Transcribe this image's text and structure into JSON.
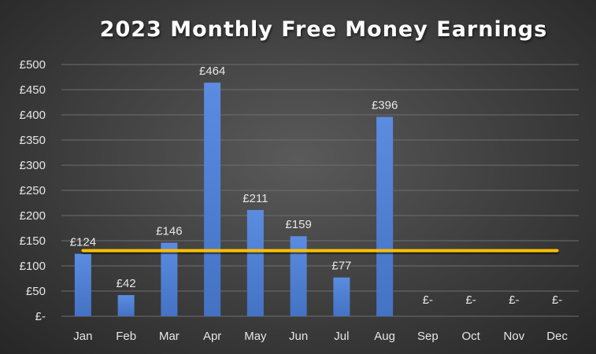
{
  "chart_data": {
    "type": "bar",
    "title": "2023 Monthly Free Money Earnings",
    "categories": [
      "Jan",
      "Feb",
      "Mar",
      "Apr",
      "May",
      "Jun",
      "Jul",
      "Aug",
      "Sep",
      "Oct",
      "Nov",
      "Dec"
    ],
    "values": [
      124,
      42,
      146,
      464,
      211,
      159,
      77,
      396,
      0,
      0,
      0,
      0
    ],
    "data_labels": [
      "£124",
      "£42",
      "£146",
      "£464",
      "£211",
      "£159",
      "£77",
      "£396",
      "£-",
      "£-",
      "£-",
      "£-"
    ],
    "y_tick_labels": [
      "£-",
      "£50",
      "£100",
      "£150",
      "£200",
      "£250",
      "£300",
      "£350",
      "£400",
      "£450",
      "£500"
    ],
    "ylim": [
      0,
      500
    ],
    "grid": true,
    "legend": "none",
    "reference_line": {
      "value": 124,
      "color": "#ffc000"
    },
    "colors": {
      "bar": "#4472c4",
      "bar_light": "#5b8ce0",
      "background": "#404040"
    }
  }
}
